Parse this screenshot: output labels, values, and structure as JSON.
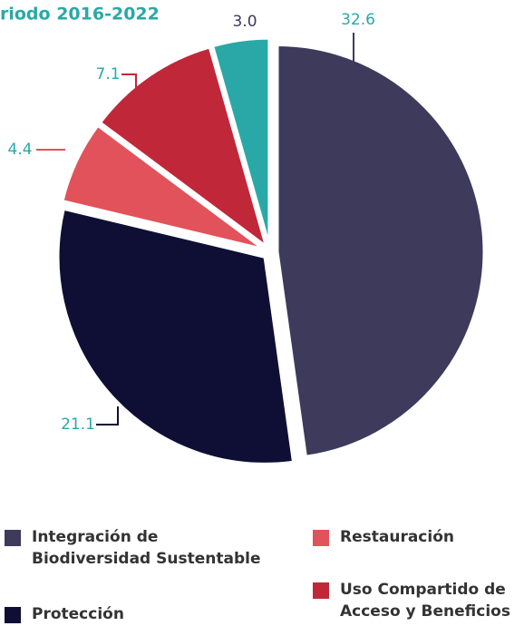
{
  "chart_data": {
    "type": "pie",
    "title": "riodo 2016-2022",
    "categories": [
      "Integración de Biodiversidad Sustentable",
      "Protección",
      "Restauración",
      "Uso Compartido de Acceso y Beneficios",
      null
    ],
    "values": [
      32.6,
      21.1,
      4.4,
      7.1,
      3.0
    ],
    "value_labels": [
      "32.6",
      "21.1",
      "4.4",
      "7.1",
      "3.0"
    ],
    "colors": [
      "#3d3a5c",
      "#0f0f35",
      "#e2525a",
      "#c0283a",
      "#2aa8a8"
    ],
    "legend": "bottom"
  }
}
